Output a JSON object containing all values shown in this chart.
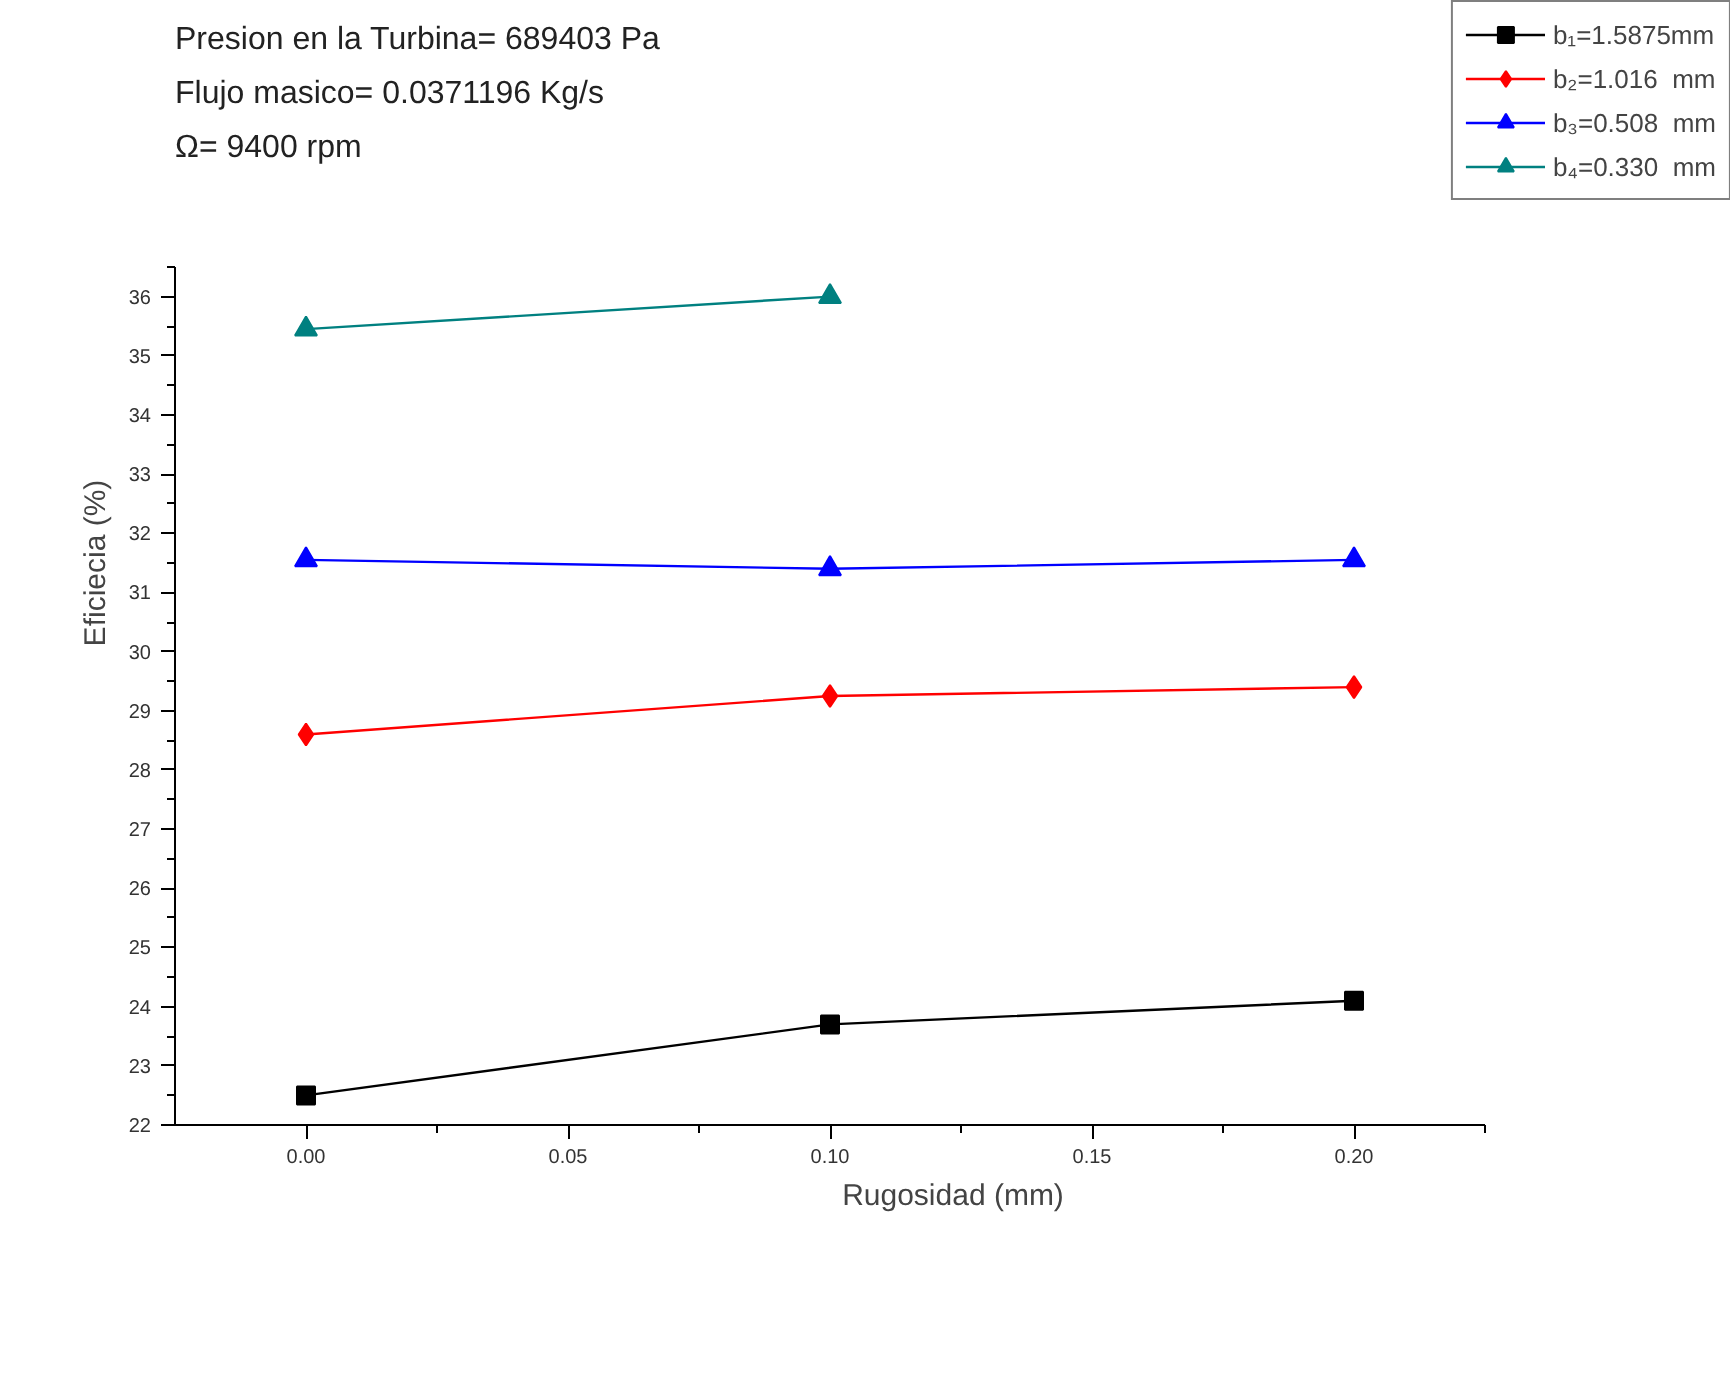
{
  "chart_data": {
    "type": "line",
    "xlabel": "Rugosidad (mm)",
    "ylabel": "Eficiecia (%)",
    "annotations": [
      "Presion en la Turbina= 689403 Pa",
      "Flujo masico= 0.0371196 Kg/s",
      "Ω= 9400 rpm"
    ],
    "x": [
      0.0,
      0.1,
      0.2
    ],
    "series": [
      {
        "name": "b₁=1.5875mm",
        "color": "#000000",
        "marker": "square",
        "values": [
          22.5,
          23.7,
          24.1
        ]
      },
      {
        "name": "b₂=1.016  mm",
        "color": "#ff0000",
        "marker": "diamond",
        "values": [
          28.6,
          29.25,
          29.4
        ]
      },
      {
        "name": "b₃=0.508  mm",
        "color": "#0000ff",
        "marker": "triangle",
        "values": [
          31.55,
          31.4,
          31.55
        ]
      },
      {
        "name": "b₄=0.330  mm",
        "color": "#008080",
        "marker": "triangle",
        "values": [
          35.45,
          36.0,
          null
        ]
      }
    ],
    "xlim": [
      -0.025,
      0.225
    ],
    "xticks": [
      {
        "value": 0.0,
        "label": "0.00"
      },
      {
        "value": 0.05,
        "label": "0.05"
      },
      {
        "value": 0.1,
        "label": "0.10"
      },
      {
        "value": 0.15,
        "label": "0.15"
      },
      {
        "value": 0.2,
        "label": "0.20"
      }
    ],
    "ylim": [
      22,
      36.5
    ],
    "yticks": [
      22,
      23,
      24,
      25,
      26,
      27,
      28,
      29,
      30,
      31,
      32,
      33,
      34,
      35,
      36
    ],
    "grid": false,
    "legend": "top right",
    "line_style": "solid"
  }
}
